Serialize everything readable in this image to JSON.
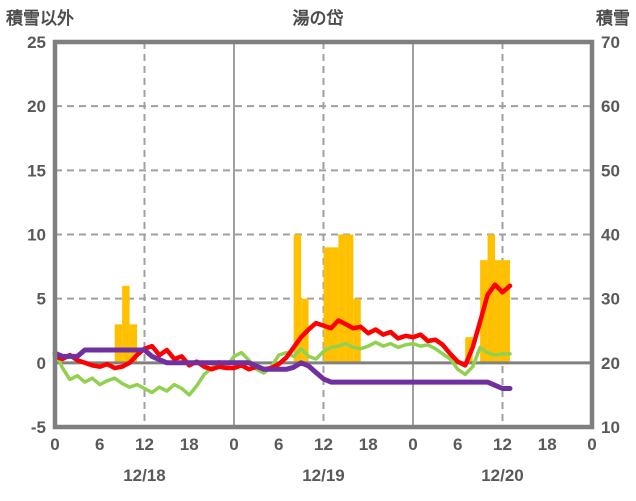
{
  "header": {
    "left_axis_title": "積雪以外",
    "station_name": "湯の岱",
    "right_axis_title": "積雪"
  },
  "chart_data": {
    "type": "bar+line combo, dual y-axis, 3-day hourly weather chart",
    "title": "湯の岱",
    "x_axis": {
      "max_hours": 72,
      "tick_hours": [
        0,
        6,
        12,
        18,
        24,
        30,
        36,
        42,
        48,
        54,
        60,
        66,
        72
      ],
      "tick_labels": [
        "0",
        "6",
        "12",
        "18",
        "0",
        "6",
        "12",
        "18",
        "0",
        "6",
        "12",
        "18",
        "0"
      ],
      "date_labels": [
        {
          "label": "12/18",
          "hour": 12
        },
        {
          "label": "12/19",
          "hour": 36
        },
        {
          "label": "12/20",
          "hour": 60
        }
      ]
    },
    "left_axis": {
      "title": "積雪以外",
      "min": -5,
      "max": 25,
      "ticks": [
        25,
        20,
        15,
        10,
        5,
        0,
        -5
      ]
    },
    "right_axis": {
      "title": "積雪",
      "min": 10,
      "max": 70,
      "ticks": [
        70,
        60,
        50,
        40,
        30,
        20,
        10
      ]
    },
    "gridlines": {
      "h_dashed_left_values": [
        20,
        15,
        10,
        5
      ],
      "zero_line_left_value": 0,
      "v_dashed_hours": [
        12,
        36,
        60
      ],
      "v_solid_hours": [
        24,
        48
      ]
    },
    "bars": {
      "name": "hourly-bars",
      "axis": "left",
      "color": "#FFC000",
      "points": [
        {
          "t": 9,
          "v": 3
        },
        {
          "t": 10,
          "v": 6
        },
        {
          "t": 11,
          "v": 3
        },
        {
          "t": 33,
          "v": 10
        },
        {
          "t": 34,
          "v": 5
        },
        {
          "t": 37,
          "v": 9
        },
        {
          "t": 38,
          "v": 9
        },
        {
          "t": 39,
          "v": 10
        },
        {
          "t": 40,
          "v": 10
        },
        {
          "t": 41,
          "v": 5
        },
        {
          "t": 56,
          "v": 2
        },
        {
          "t": 58,
          "v": 8
        },
        {
          "t": 59,
          "v": 10
        },
        {
          "t": 60,
          "v": 8
        },
        {
          "t": 61,
          "v": 8
        }
      ]
    },
    "series": [
      {
        "name": "green-line",
        "axis": "left",
        "color": "#92D050",
        "width": 3.5,
        "values": [
          0.9,
          -0.4,
          -1.3,
          -1,
          -1.5,
          -1.2,
          -1.7,
          -1.4,
          -1.2,
          -1.6,
          -1.9,
          -1.7,
          -2,
          -2.3,
          -1.9,
          -2.2,
          -1.7,
          -2,
          -2.5,
          -1.8,
          -0.9,
          -0.4,
          0.1,
          -0.3,
          0.5,
          0.8,
          0.2,
          -0.5,
          -0.8,
          -0.3,
          0.6,
          0.8,
          0.5,
          1.1,
          0.5,
          0.3,
          0.9,
          1.2,
          1.3,
          1.5,
          1.2,
          1.1,
          1.3,
          1.6,
          1.3,
          1.5,
          1.2,
          1.4,
          1.5,
          1.3,
          1.4,
          1.1,
          0.7,
          0.3,
          -0.5,
          -0.9,
          -0.3,
          1.2,
          0.8,
          0.6,
          0.7,
          0.7
        ]
      },
      {
        "name": "red-line",
        "axis": "left",
        "color": "#FF0000",
        "width": 4.5,
        "values": [
          0.5,
          0.3,
          0.6,
          0.2,
          0,
          -0.2,
          -0.3,
          -0.1,
          -0.4,
          -0.3,
          0,
          0.6,
          1.1,
          1.3,
          0.6,
          1,
          0.3,
          0.5,
          -0.2,
          0.1,
          -0.3,
          -0.5,
          -0.3,
          -0.4,
          -0.4,
          -0.2,
          -0.5,
          -0.3,
          -0.5,
          -0.4,
          -0.1,
          0.4,
          1.2,
          2,
          2.6,
          3.1,
          2.9,
          2.7,
          3.3,
          3,
          2.7,
          2.8,
          2.3,
          2.6,
          2.2,
          2.4,
          1.9,
          2.1,
          2,
          2.2,
          1.7,
          1.8,
          1.4,
          0.7,
          0.1,
          -0.2,
          1.2,
          3.2,
          5.3,
          6.1,
          5.5,
          6
        ]
      },
      {
        "name": "purple-line",
        "axis": "right",
        "color": "#7030A0",
        "width": 5,
        "values": [
          21.5,
          21,
          21,
          21,
          22,
          22,
          22,
          22,
          22,
          22,
          22,
          22,
          22,
          21,
          20.5,
          20,
          20,
          20,
          20,
          20,
          20,
          20,
          20,
          20,
          20,
          20,
          20,
          19.5,
          19,
          19,
          19,
          19,
          19.3,
          20,
          19.5,
          18.5,
          17.5,
          17,
          17,
          17,
          17,
          17,
          17,
          17,
          17,
          17,
          17,
          17,
          17,
          17,
          17,
          17,
          17,
          17,
          17,
          17,
          17,
          17,
          17,
          16.5,
          16,
          16
        ]
      }
    ],
    "colors": {
      "bar": "#FFC000",
      "red_series": "#FF0000",
      "green_series": "#92D050",
      "purple_series": "#7030A0",
      "grid": "#a0a0a0",
      "axis_border": "#7f7f7f",
      "zero_line": "#808080",
      "text": "#595959"
    },
    "legend": "none (no legend shown)"
  }
}
